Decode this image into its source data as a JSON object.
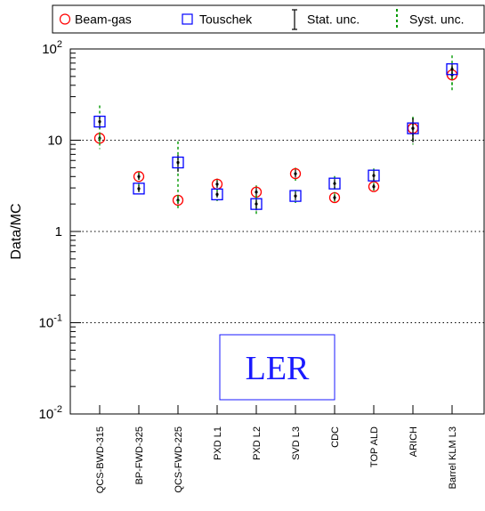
{
  "chart_data": {
    "type": "scatter",
    "ylabel": "Data/MC",
    "yscale": "log",
    "ylim": [
      0.01,
      100
    ],
    "y_ticks": [
      {
        "base": "10",
        "exp": "-2"
      },
      {
        "base": "10",
        "exp": "-1"
      },
      {
        "base": "1",
        "exp": ""
      },
      {
        "base": "10",
        "exp": ""
      },
      {
        "base": "10",
        "exp": "2"
      }
    ],
    "y_tick_values": [
      0.01,
      0.1,
      1,
      10,
      100
    ],
    "grid": "horizontal dotted at decades",
    "legend_position": "top",
    "legend": [
      {
        "label": "Beam-gas",
        "marker": "open-circle",
        "color": "#ff0000"
      },
      {
        "label": "Touschek",
        "marker": "open-square",
        "color": "#0000ff"
      },
      {
        "label": "Stat. unc.",
        "marker": "solid-errorbar",
        "color": "#000000"
      },
      {
        "label": "Syst. unc.",
        "marker": "dashed-errorbar",
        "color": "#009900"
      }
    ],
    "categories": [
      "QCS-BWD-315",
      "BP-FWD-325",
      "QCS-FWD-225",
      "PXD L1",
      "PXD L2",
      "SVD L3",
      "CDC",
      "TOP ALD",
      "ARICH",
      "Barrel KLM L3"
    ],
    "series": [
      {
        "name": "Beam-gas",
        "values": [
          10.5,
          4.0,
          2.2,
          3.3,
          2.7,
          4.3,
          2.35,
          3.1,
          13.5,
          52
        ],
        "stat_err": [
          0.6,
          0.3,
          0.2,
          0.3,
          0.3,
          0.4,
          0.15,
          0.2,
          4.0,
          7
        ],
        "syst_err": [
          1.0,
          0.5,
          0.3,
          0.5,
          0.5,
          0.7,
          0.25,
          0.3,
          4.5,
          12
        ]
      },
      {
        "name": "Touschek",
        "values": [
          16,
          2.95,
          5.7,
          2.55,
          2.0,
          2.45,
          3.35,
          4.1,
          13.5,
          60
        ],
        "stat_err": [
          2.5,
          0.25,
          1.2,
          0.2,
          0.3,
          0.25,
          0.4,
          0.5,
          4.0,
          8
        ],
        "syst_err": [
          8,
          0.4,
          4.0,
          0.4,
          0.5,
          0.4,
          0.7,
          0.8,
          4.5,
          25
        ]
      }
    ],
    "annotation": "LER",
    "colors": {
      "beam_gas": "#ff0000",
      "touschek": "#0000ff",
      "stat": "#000000",
      "syst": "#009900",
      "stamp": "#1a1aff"
    }
  }
}
